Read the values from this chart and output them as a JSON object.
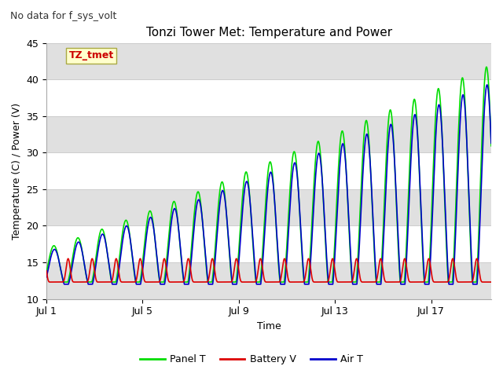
{
  "title": "Tonzi Tower Met: Temperature and Power",
  "subtitle": "No data for f_sys_volt",
  "xlabel": "Time",
  "ylabel": "Temperature (C) / Power (V)",
  "ylim": [
    10,
    45
  ],
  "xlim": [
    0,
    18.5
  ],
  "xtick_positions": [
    0,
    4,
    8,
    12,
    16
  ],
  "xtick_labels": [
    "Jul 1",
    "Jul 5",
    "Jul 9",
    "Jul 13",
    "Jul 17"
  ],
  "ytick_positions": [
    10,
    15,
    20,
    25,
    30,
    35,
    40,
    45
  ],
  "annotation_label": "TZ_tmet",
  "annotation_color": "#cc0000",
  "annotation_bg": "#ffffcc",
  "annotation_border": "#aaaa44",
  "legend_entries": [
    "Panel T",
    "Battery V",
    "Air T"
  ],
  "line_colors": [
    "#00dd00",
    "#dd0000",
    "#0000cc"
  ],
  "bg_band_color": "#e0e0e0",
  "subtitle_color": "#333333",
  "subtitle_fontsize": 9,
  "title_fontsize": 11,
  "axis_label_fontsize": 9,
  "tick_fontsize": 9,
  "legend_fontsize": 9
}
